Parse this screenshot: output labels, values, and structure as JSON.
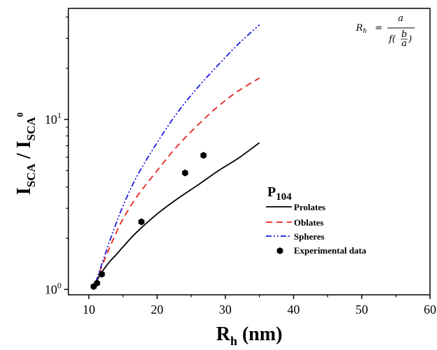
{
  "chart_data": {
    "type": "line",
    "x_scale": "linear",
    "y_scale": "log",
    "xlim": [
      7,
      60
    ],
    "ylim": [
      0.93,
      45
    ],
    "x_ticks": [
      10,
      20,
      30,
      40,
      50,
      60
    ],
    "x_tick_labels": [
      "10",
      "20",
      "30",
      "40",
      "50",
      "60"
    ],
    "y_ticks": [
      1,
      10
    ],
    "y_tick_labels": [
      {
        "base": "10",
        "exp": "0"
      },
      {
        "base": "10",
        "exp": "1"
      }
    ],
    "xlabel": {
      "main": "R",
      "sub": "h",
      "rest": " (nm)"
    },
    "ylabel": {
      "part1": "I",
      "sub1": "SCA",
      "mid": " / I",
      "sub2": "SCA",
      "sup": "0"
    },
    "legend": {
      "title_main": "P",
      "title_sub": "104",
      "position": "center-right"
    },
    "formula": {
      "lhs": "R",
      "lhs_sub": "h",
      "eq": "=",
      "num": "a",
      "den_f": "f(",
      "den_num": "b",
      "den_den": "a",
      "den_close": ")"
    },
    "series": [
      {
        "name": "Prolates",
        "style": "solid",
        "color": "#000000",
        "x": [
          11,
          12,
          13,
          14,
          15,
          17,
          20,
          23,
          26,
          29,
          32,
          35
        ],
        "y": [
          1.1,
          1.28,
          1.45,
          1.6,
          1.78,
          2.17,
          2.78,
          3.42,
          4.12,
          5.0,
          5.95,
          7.3
        ]
      },
      {
        "name": "Oblates",
        "style": "dashed",
        "color": "#e8231f",
        "x": [
          11,
          12,
          13,
          14,
          15,
          17,
          20,
          23,
          26,
          29,
          32,
          35
        ],
        "y": [
          1.1,
          1.4,
          1.75,
          2.15,
          2.6,
          3.5,
          5.0,
          7.0,
          9.3,
          12.0,
          14.8,
          17.5
        ]
      },
      {
        "name": "Spheres",
        "style": "dash-dot-dot",
        "color": "#1a1adf",
        "x": [
          11,
          12,
          13,
          14,
          15,
          17,
          20,
          23,
          26,
          29,
          32,
          35
        ],
        "y": [
          1.1,
          1.45,
          1.9,
          2.45,
          3.1,
          4.6,
          7.3,
          11.0,
          15.5,
          21.0,
          28.0,
          36.0
        ]
      },
      {
        "name": "Experimental data",
        "style": "markers",
        "marker": "hexagon",
        "color": "#000000",
        "x": [
          10.7,
          11.2,
          11.9,
          17.7,
          24.1,
          26.8
        ],
        "y": [
          1.04,
          1.09,
          1.23,
          2.5,
          4.85,
          6.15
        ]
      }
    ]
  }
}
